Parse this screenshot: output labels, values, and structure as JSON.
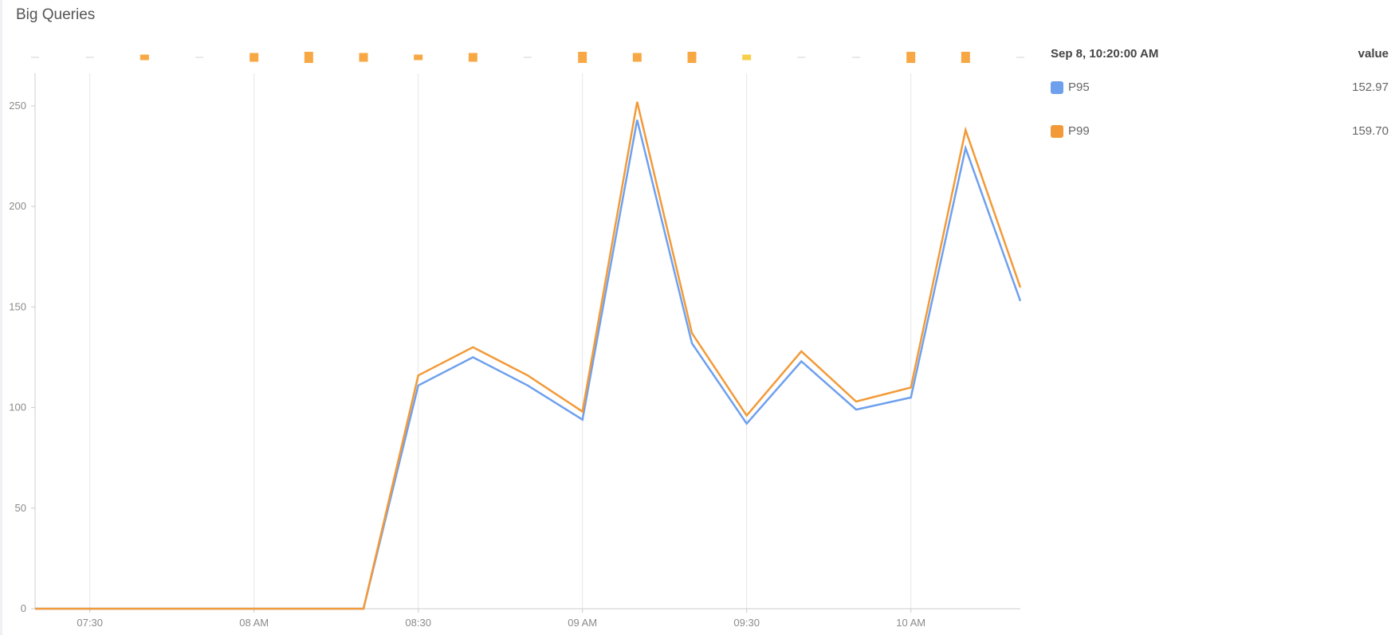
{
  "panel": {
    "title": "Big Queries"
  },
  "legend": {
    "timestamp": "Sep 8, 10:20:00 AM",
    "column_label": "value",
    "items": [
      {
        "name": "P95",
        "value": "152.97",
        "color": "#6fa0ee"
      },
      {
        "name": "P99",
        "value": "159.70",
        "color": "#f29a38"
      }
    ]
  },
  "colors": {
    "gridline": "#e6e6e6",
    "axis": "#cccccc",
    "heat_orange": "#f7a845",
    "heat_yellow": "#f6d04a",
    "heat_gray": "#d3d3d3"
  },
  "chart_data": {
    "type": "line",
    "title": "Big Queries",
    "xlabel": "",
    "ylabel": "",
    "x": [
      "07:20",
      "07:30",
      "07:40",
      "07:50",
      "08:00",
      "08:10",
      "08:20",
      "08:30",
      "08:40",
      "08:50",
      "09:00",
      "09:10",
      "09:20",
      "09:30",
      "09:40",
      "09:50",
      "10:00",
      "10:10",
      "10:20"
    ],
    "x_ticks": [
      "07:30",
      "08 AM",
      "08:30",
      "09 AM",
      "09:30",
      "10 AM"
    ],
    "x_tick_times": [
      "07:30",
      "08:00",
      "08:30",
      "09:00",
      "09:30",
      "10:00"
    ],
    "x_range": [
      "07:20",
      "10:20"
    ],
    "ylim": [
      0,
      265
    ],
    "y_ticks": [
      0,
      50,
      100,
      150,
      200,
      250
    ],
    "grid": "vertical",
    "legend_position": "right",
    "series": [
      {
        "name": "P95",
        "color": "#6fa0ee",
        "values": [
          0,
          0,
          0,
          0,
          0,
          0,
          0,
          111,
          125,
          111,
          94,
          243,
          132,
          92,
          123,
          99,
          105,
          229,
          152.97
        ]
      },
      {
        "name": "P99",
        "color": "#f29a38",
        "values": [
          0,
          0,
          0,
          0,
          0,
          0,
          0,
          116,
          130,
          116,
          98,
          252,
          137,
          96,
          128,
          103,
          110,
          238,
          159.7
        ]
      }
    ],
    "heat_strip": {
      "levels": [
        "empty",
        "empty",
        "low",
        "empty",
        "mid",
        "high",
        "mid",
        "low",
        "mid",
        "empty",
        "high",
        "mid",
        "high",
        "yellow",
        "empty",
        "empty",
        "high",
        "high",
        "empty"
      ]
    }
  }
}
